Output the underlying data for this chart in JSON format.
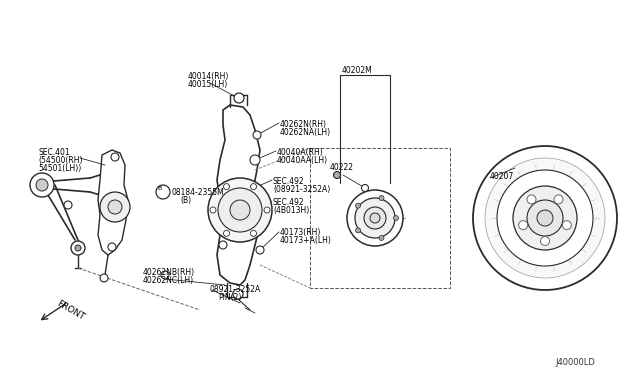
{
  "bg": "white",
  "lc": "#2a2a2a",
  "diagram_id": "J40000LD",
  "labels": {
    "top_center_1": "40014(RH)",
    "top_center_2": "40015(LH)",
    "bolt_ur_1": "40262N(RH)",
    "bolt_ur_2": "40262NA(LH)",
    "bolt_mr_1": "40040A(RH)",
    "bolt_mr_2": "40040AA(LH)",
    "sec1_1": "SEC.492",
    "sec1_2": "(08921-3252A)",
    "sec2_1": "SEC.492",
    "sec2_2": "(4B013H)",
    "bot_ctr_1": "40173(RH)",
    "bot_ctr_2": "40173+A(LH)",
    "bot_left_1": "40262NB(RH)",
    "bot_left_2": "40262NC(LH)",
    "pin_1": "08921-3252A",
    "pin_2": "PIN(2)",
    "left_sec_1": "SEC.401",
    "left_sec_2": "(54500(RH)",
    "left_sec_3": "54501(LH))",
    "left_bolt_1": "08184-2355M",
    "left_bolt_2": "(B)",
    "label_40202M": "40202M",
    "label_40222": "40222",
    "label_40207": "40207",
    "front": "FRONT"
  },
  "font": 5.5,
  "font_small": 5.0
}
